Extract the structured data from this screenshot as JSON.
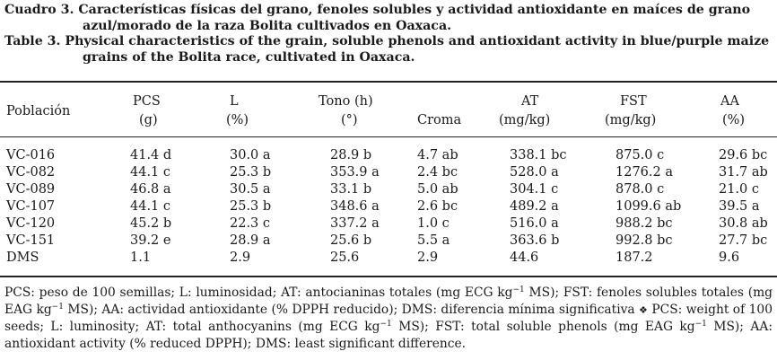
{
  "caption": {
    "es": "Cuadro 3. Características físicas del grano, fenoles solubles y actividad antioxidante en maíces de grano azul/morado de la raza Bolita cultivados en Oaxaca.",
    "en": "Table 3. Physical characteristics of the grain, soluble phenols and antioxidant activity in blue/purple maize grains of the Bolita race, cultivated in Oaxaca."
  },
  "table": {
    "headers": [
      {
        "top": "",
        "bottom": "Población"
      },
      {
        "top": "PCS",
        "bottom": "(g)"
      },
      {
        "top": "L",
        "bottom": "(%)"
      },
      {
        "top": "Tono (h)",
        "bottom": "(°)"
      },
      {
        "top": "",
        "bottom": "Croma"
      },
      {
        "top": "AT",
        "bottom": "(mg/kg)"
      },
      {
        "top": "FST",
        "bottom": "(mg/kg)"
      },
      {
        "top": "AA",
        "bottom": "(%)"
      }
    ],
    "rows": [
      [
        "VC-016",
        "41.4 d",
        "30.0 a",
        "28.9 b",
        "4.7 ab",
        "338.1 bc",
        "875.0 c",
        "29.6 bc"
      ],
      [
        "VC-082",
        "44.1 c",
        "25.3 b",
        "353.9 a",
        "2.4 bc",
        "528.0 a",
        "1276.2 a",
        "31.7 ab"
      ],
      [
        "VC-089",
        "46.8 a",
        "30.5 a",
        "33.1 b",
        "5.0 ab",
        "304.1 c",
        "878.0 c",
        "21.0 c"
      ],
      [
        "VC-107",
        "44.1 c",
        "25.3 b",
        "348.6 a",
        "2.6 bc",
        "489.2 a",
        "1099.6 ab",
        "39.5 a"
      ],
      [
        "VC-120",
        "45.2 b",
        "22.3 c",
        "337.2 a",
        "1.0 c",
        "516.0 a",
        "988.2 bc",
        "30.8 ab"
      ],
      [
        "VC-151",
        "39.2 e",
        "28.9 a",
        "25.6 b",
        "5.5 a",
        "363.6 b",
        "992.8 bc",
        "27.7 bc"
      ],
      [
        "DMS",
        "1.1",
        "2.9",
        "25.6",
        "2.9",
        "44.6",
        "187.2",
        "9.6"
      ]
    ]
  },
  "footnote": {
    "es_1": "PCS: peso de 100 semillas; L: luminosidad; AT: antocianinas totales (mg ECG kg",
    "es_sup_1": "−1",
    "es_2": " MS); FST: fenoles solubles totales (mg EAG kg",
    "es_sup_2": "−1",
    "es_3": " MS); AA: actividad antioxidante (% DPPH reducido); DMS: diferencia mínima significativa ",
    "separator": "❖",
    "en_1": " PCS: weight of 100 seeds; L: luminosity; AT: total anthocyanins (mg ECG kg",
    "en_sup_1": "−1",
    "en_2": " MS); FST: total soluble phenols (mg EAG kg",
    "en_sup_2": "−1",
    "en_3": " MS); AA: antioxidant activity (% reduced DPPH); DMS: least significant difference."
  }
}
